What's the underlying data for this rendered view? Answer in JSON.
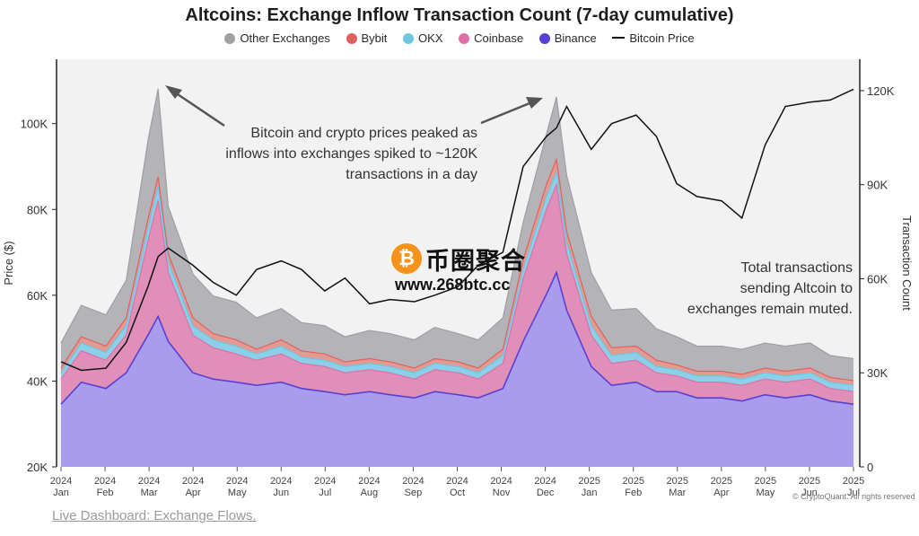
{
  "title": "Altcoins: Exchange Inflow Transaction Count (7-day cumulative)",
  "legend": [
    {
      "label": "Other Exchanges",
      "color": "#9e9ea3"
    },
    {
      "label": "Bybit",
      "color": "#e06060"
    },
    {
      "label": "OKX",
      "color": "#6cc7e2"
    },
    {
      "label": "Coinbase",
      "color": "#df6fa6"
    },
    {
      "label": "Binance",
      "color": "#5a3fd6"
    },
    {
      "label": "Bitcoin Price",
      "color": "#111111"
    }
  ],
  "annotations": {
    "peak": [
      "Bitcoin and crypto prices peaked as",
      "inflows into exchanges spiked to ~120K",
      "transactions in a day"
    ],
    "muted": [
      "Total transactions",
      "sending Altcoin  to",
      "exchanges remain muted."
    ]
  },
  "watermark": {
    "name": "币圈聚合",
    "url": "www.268btc.cc",
    "coin_symbol": "₿"
  },
  "credit": "© CryptoQuant. All rights reserved",
  "footer_link": "Live Dashboard: Exchange Flows.",
  "chart_data": {
    "type": "area",
    "title": "Altcoins: Exchange Inflow Transaction Count (7-day cumulative)",
    "left_axis": {
      "label": "Price ($)",
      "ticks": [
        "20K",
        "40K",
        "60K",
        "80K",
        "100K"
      ],
      "range": [
        20000,
        115000
      ]
    },
    "right_axis": {
      "label": "Transaction Count",
      "ticks": [
        "0",
        "30K",
        "60K",
        "90K",
        "120K"
      ],
      "range": [
        0,
        130000
      ]
    },
    "x_ticks": [
      {
        "year": "2024",
        "month": "Jan"
      },
      {
        "year": "2024",
        "month": "Feb"
      },
      {
        "year": "2024",
        "month": "Mar"
      },
      {
        "year": "2024",
        "month": "Apr"
      },
      {
        "year": "2024",
        "month": "May"
      },
      {
        "year": "2024",
        "month": "Jun"
      },
      {
        "year": "2024",
        "month": "Jul"
      },
      {
        "year": "2024",
        "month": "Aug"
      },
      {
        "year": "2024",
        "month": "Sep"
      },
      {
        "year": "2024",
        "month": "Oct"
      },
      {
        "year": "2024",
        "month": "Nov"
      },
      {
        "year": "2024",
        "month": "Dec"
      },
      {
        "year": "2025",
        "month": "Jan"
      },
      {
        "year": "2025",
        "month": "Feb"
      },
      {
        "year": "2025",
        "month": "Mar"
      },
      {
        "year": "2025",
        "month": "Apr"
      },
      {
        "year": "2025",
        "month": "May"
      },
      {
        "year": "2025",
        "month": "Jun"
      },
      {
        "year": "2025",
        "month": "Jul"
      }
    ],
    "x_range": [
      "2024-01-01",
      "2025-07-01"
    ],
    "stack_order": [
      "Binance",
      "Coinbase",
      "OKX",
      "Bybit",
      "Other Exchanges"
    ],
    "dates": [
      "2024-01-01",
      "2024-01-15",
      "2024-02-01",
      "2024-02-15",
      "2024-03-01",
      "2024-03-08",
      "2024-03-15",
      "2024-04-01",
      "2024-04-15",
      "2024-05-01",
      "2024-05-15",
      "2024-06-01",
      "2024-06-15",
      "2024-07-01",
      "2024-07-15",
      "2024-08-01",
      "2024-08-15",
      "2024-09-01",
      "2024-09-15",
      "2024-10-01",
      "2024-10-15",
      "2024-11-01",
      "2024-11-15",
      "2024-12-01",
      "2024-12-08",
      "2024-12-15",
      "2025-01-01",
      "2025-01-15",
      "2025-02-01",
      "2025-02-15",
      "2025-03-01",
      "2025-03-15",
      "2025-04-01",
      "2025-04-15",
      "2025-05-01",
      "2025-05-15",
      "2025-06-01",
      "2025-06-15",
      "2025-07-01"
    ],
    "series": [
      {
        "name": "Binance",
        "color": "#a99cec",
        "line": "#5a3fd6",
        "values": [
          20000,
          27000,
          25000,
          30000,
          42000,
          48000,
          40000,
          30000,
          28000,
          27000,
          26000,
          27000,
          25000,
          24000,
          23000,
          24000,
          23000,
          22000,
          24000,
          23000,
          22000,
          25000,
          40000,
          55000,
          62000,
          50000,
          32000,
          26000,
          27000,
          24000,
          24000,
          22000,
          22000,
          21000,
          23000,
          22000,
          23000,
          21000,
          20000
        ]
      },
      {
        "name": "Coinbase",
        "values": [
          8000,
          10000,
          9000,
          12000,
          30000,
          37000,
          22000,
          12000,
          10000,
          9000,
          8000,
          9000,
          8000,
          8000,
          7000,
          7000,
          7000,
          6000,
          7000,
          7000,
          6000,
          8000,
          20000,
          27000,
          28000,
          18000,
          10000,
          7000,
          7000,
          6000,
          5000,
          5000,
          5000,
          5000,
          5000,
          5000,
          5000,
          4000,
          4000
        ]
      },
      {
        "name": "OKX",
        "values": [
          2000,
          2500,
          2500,
          3000,
          4000,
          4500,
          3500,
          3000,
          2500,
          2500,
          2000,
          2500,
          2000,
          2000,
          2000,
          2000,
          2000,
          2000,
          2000,
          2000,
          2000,
          2500,
          3000,
          4000,
          4000,
          3500,
          3000,
          2500,
          2500,
          2000,
          2000,
          2000,
          2000,
          2000,
          2000,
          2000,
          2000,
          2000,
          2000
        ]
      },
      {
        "name": "Bybit",
        "values": [
          1500,
          2000,
          2000,
          2500,
          3000,
          3000,
          2500,
          2500,
          2000,
          2000,
          1500,
          2000,
          2000,
          2000,
          1500,
          1500,
          1500,
          1500,
          1500,
          1500,
          1500,
          2000,
          3000,
          4000,
          4000,
          3500,
          3000,
          2500,
          2000,
          2000,
          1500,
          1500,
          1500,
          1500,
          1500,
          1500,
          1500,
          1500,
          1500
        ]
      },
      {
        "name": "Other Exchanges",
        "values": [
          8000,
          10000,
          10000,
          12000,
          25000,
          28000,
          15000,
          14000,
          12000,
          12000,
          10000,
          10000,
          9000,
          9000,
          8000,
          9000,
          9000,
          9000,
          10000,
          9000,
          9000,
          10000,
          12000,
          16000,
          20000,
          18000,
          14000,
          12000,
          12000,
          10000,
          9000,
          8000,
          8000,
          8000,
          8000,
          8000,
          8000,
          7000,
          7000
        ]
      },
      {
        "name": "Bitcoin Price",
        "axis": "left",
        "color": "#111111",
        "values": [
          44500,
          42500,
          43000,
          49000,
          62000,
          69000,
          71000,
          67000,
          63000,
          60000,
          66000,
          68000,
          66000,
          61000,
          64000,
          58000,
          59000,
          58500,
          60000,
          62000,
          67000,
          70000,
          90000,
          97000,
          99000,
          104000,
          94000,
          100000,
          102000,
          97000,
          86000,
          83000,
          82000,
          78000,
          95000,
          104000,
          105000,
          105500,
          108000
        ]
      }
    ]
  }
}
